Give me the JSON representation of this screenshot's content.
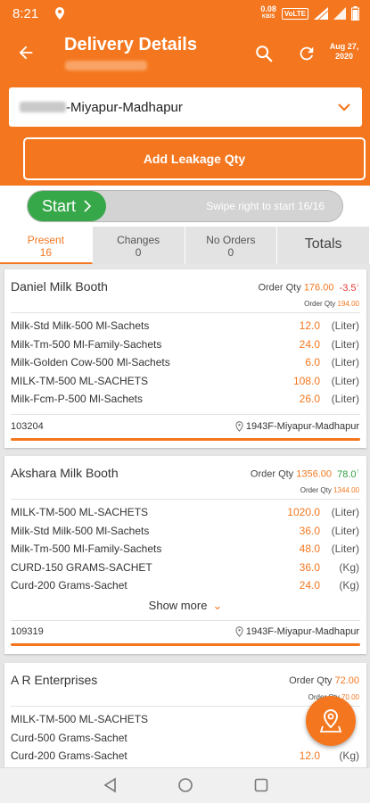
{
  "status_bar": {
    "time": "8:21",
    "speed_value": "0.08",
    "speed_unit": "KB/S",
    "volte": "VoLTE"
  },
  "header": {
    "title": "Delivery Details",
    "date_line1": "Aug 27,",
    "date_line2": "2020"
  },
  "route": {
    "selected": "-Miyapur-Madhapur"
  },
  "leakage_button": {
    "label": "Add Leakage Qty"
  },
  "swipe": {
    "start_label": "Start",
    "hint": "Swipe right to start 16/16"
  },
  "tabs": [
    {
      "label": "Present",
      "count": "16"
    },
    {
      "label": "Changes",
      "count": "0"
    },
    {
      "label": "No Orders",
      "count": "0"
    },
    {
      "label": "Totals",
      "count": ""
    }
  ],
  "order_qty_label": "Order Qty",
  "show_more_label": "Show more",
  "cards": [
    {
      "name": "Daniel Milk Booth",
      "order_qty": "176.00",
      "diff": "-3.5",
      "diff_sign": "negative",
      "order_qty2": "194.00",
      "items": [
        {
          "name": "Milk-Std Milk-500 Ml-Sachets",
          "qty": "12.0",
          "unit": "(Liter)"
        },
        {
          "name": "Milk-Tm-500 Ml-Family-Sachets",
          "qty": "24.0",
          "unit": "(Liter)"
        },
        {
          "name": "Milk-Golden Cow-500 Ml-Sachets",
          "qty": "6.0",
          "unit": "(Liter)"
        },
        {
          "name": "MILK-TM-500 ML-SACHETS",
          "qty": "108.0",
          "unit": "(Liter)"
        },
        {
          "name": "Milk-Fcm-P-500 Ml-Sachets",
          "qty": "26.0",
          "unit": "(Liter)"
        }
      ],
      "code": "103204",
      "location": "1943F-Miyapur-Madhapur"
    },
    {
      "name": "Akshara Milk Booth",
      "order_qty": "1356.00",
      "diff": "78.0",
      "diff_sign": "positive",
      "order_qty2": "1344.00",
      "items": [
        {
          "name": "MILK-TM-500 ML-SACHETS",
          "qty": "1020.0",
          "unit": "(Liter)"
        },
        {
          "name": "Milk-Std Milk-500 Ml-Sachets",
          "qty": "36.0",
          "unit": "(Liter)"
        },
        {
          "name": "Milk-Tm-500 Ml-Family-Sachets",
          "qty": "48.0",
          "unit": "(Liter)"
        },
        {
          "name": "CURD-150 GRAMS-SACHET",
          "qty": "36.0",
          "unit": "(Kg)"
        },
        {
          "name": "Curd-200 Grams-Sachet",
          "qty": "24.0",
          "unit": "(Kg)"
        }
      ],
      "code": "109319",
      "location": "1943F-Miyapur-Madhapur"
    },
    {
      "name": "A R Enterprises",
      "order_qty": "72.00",
      "order_qty2": "70.00",
      "items": [
        {
          "name": "MILK-TM-500 ML-SACHETS",
          "qty": "",
          "unit": ""
        },
        {
          "name": "Curd-500 Grams-Sachet",
          "qty": "",
          "unit": ""
        },
        {
          "name": "Curd-200 Grams-Sachet",
          "qty": "12.0",
          "unit": "(Kg)"
        }
      ]
    }
  ],
  "colors": {
    "accent": "#f4771f",
    "start_green": "#37a84a",
    "negative": "#e53935",
    "positive": "#2e9e3e"
  }
}
